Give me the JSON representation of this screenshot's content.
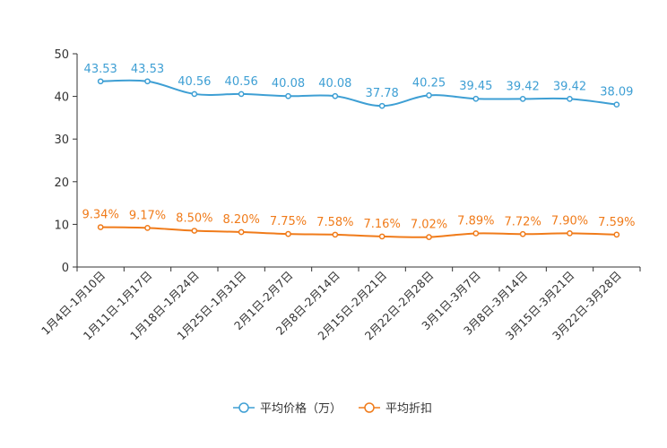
{
  "chart_data": {
    "type": "line",
    "categories": [
      "1月4日-1月10日",
      "1月11日-1月17日",
      "1月18日-1月24日",
      "1月25日-1月31日",
      "2月1日-2月7日",
      "2月8日-2月14日",
      "2月15日-2月21日",
      "2月22日-2月28日",
      "3月1日-3月7日",
      "3月8日-3月14日",
      "3月15日-3月21日",
      "3月22日-3月28日"
    ],
    "ylim": [
      0,
      50
    ],
    "yticks": [
      "0",
      "10",
      "20",
      "30",
      "40",
      "50"
    ],
    "series": [
      {
        "name": "平均价格（万）",
        "color": "#3e9fd4",
        "values": [
          43.53,
          43.53,
          40.56,
          40.56,
          40.08,
          40.08,
          37.78,
          40.25,
          39.45,
          39.42,
          39.42,
          38.09
        ],
        "labels": [
          "43.53",
          "43.53",
          "40.56",
          "40.56",
          "40.08",
          "40.08",
          "37.78",
          "40.25",
          "39.45",
          "39.42",
          "39.42",
          "38.09"
        ]
      },
      {
        "name": "平均折扣",
        "color": "#f07b1a",
        "values": [
          9.34,
          9.17,
          8.5,
          8.2,
          7.75,
          7.58,
          7.16,
          7.02,
          7.89,
          7.72,
          7.9,
          7.59
        ],
        "labels": [
          "9.34%",
          "9.17%",
          "8.50%",
          "8.20%",
          "7.75%",
          "7.58%",
          "7.16%",
          "7.02%",
          "7.89%",
          "7.72%",
          "7.90%",
          "7.59%"
        ]
      }
    ],
    "legend_position": "bottom-center",
    "grid": false
  }
}
